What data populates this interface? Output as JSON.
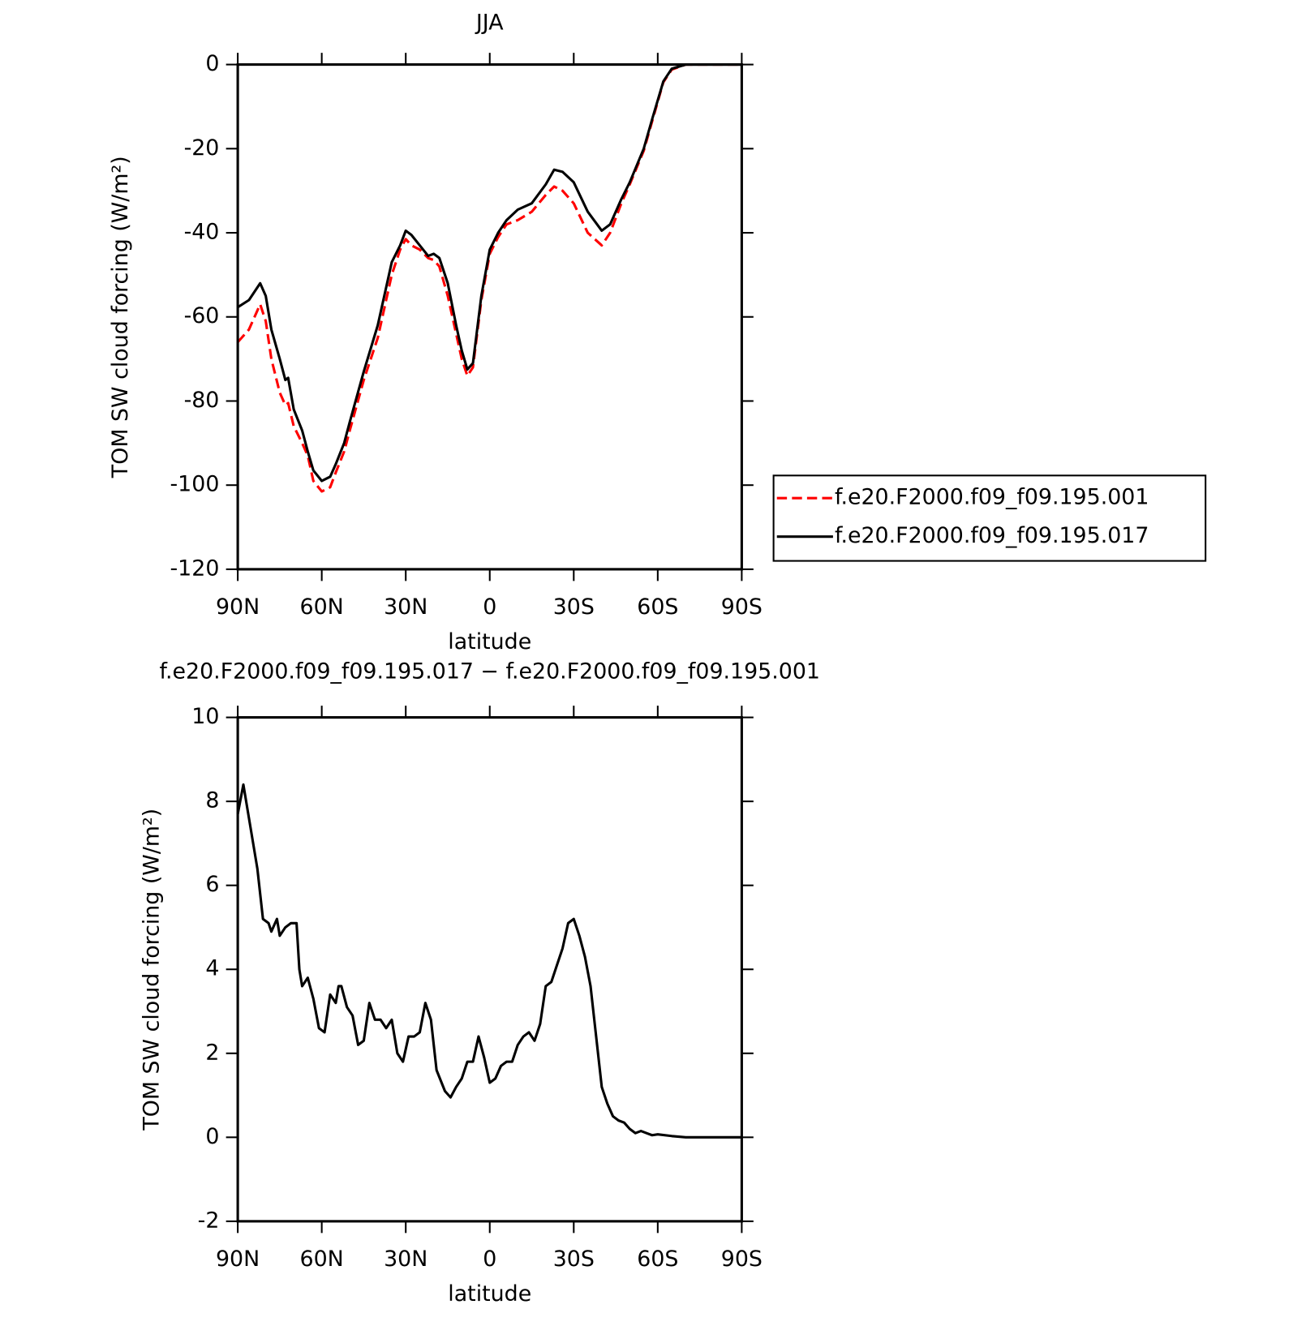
{
  "chart_data": [
    {
      "type": "line",
      "title": "JJA",
      "x_label": "latitude",
      "y_label": "TOM SW cloud forcing (W/m²)",
      "x": [
        90,
        86,
        82,
        80,
        78,
        75,
        73,
        72,
        70,
        67,
        65,
        63,
        60,
        57,
        55,
        52,
        50,
        45,
        40,
        35,
        32,
        30,
        28,
        25,
        22,
        20,
        18,
        15,
        12,
        10,
        8,
        6,
        3,
        0,
        -3,
        -6,
        -10,
        -15,
        -20,
        -23,
        -26,
        -30,
        -35,
        -40,
        -43,
        -47,
        -50,
        -55,
        -58,
        -62,
        -65,
        -70,
        -80,
        -90
      ],
      "series": [
        {
          "name": "f.e20.F2000.f09_f09.195.001",
          "color": "#ff0000",
          "dash": true,
          "values": [
            -66,
            -63,
            -57,
            -61,
            -70,
            -78,
            -81,
            -80.5,
            -86,
            -90,
            -93,
            -99,
            -101.5,
            -100.5,
            -97,
            -92,
            -87,
            -75,
            -65,
            -50,
            -44,
            -41.5,
            -43,
            -44,
            -46,
            -46.5,
            -48,
            -55,
            -64,
            -70,
            -74,
            -72,
            -56,
            -45,
            -41,
            -38,
            -37,
            -35,
            -31,
            -29,
            -30,
            -33,
            -40,
            -43,
            -40,
            -33,
            -28.5,
            -20.5,
            -13.5,
            -4.2,
            -1.2,
            0,
            0,
            0
          ]
        },
        {
          "name": "f.e20.F2000.f09_f09.195.017",
          "color": "#000000",
          "dash": false,
          "values": [
            -57.7,
            -56,
            -52,
            -55,
            -63,
            -70,
            -75,
            -74.5,
            -82,
            -87,
            -92,
            -96.5,
            -99,
            -98,
            -95,
            -90,
            -85,
            -73,
            -62,
            -47,
            -43,
            -39.5,
            -40.5,
            -43,
            -45.5,
            -45,
            -46,
            -52,
            -62,
            -68,
            -72.5,
            -71,
            -55,
            -44,
            -40,
            -37,
            -34.5,
            -33,
            -28.5,
            -25,
            -25.5,
            -28,
            -35,
            -39.5,
            -38,
            -32,
            -28,
            -20,
            -13,
            -4,
            -1,
            0,
            0,
            0
          ]
        }
      ],
      "xlim": [
        90,
        -90
      ],
      "ylim": [
        -120,
        0
      ],
      "xticks": [
        {
          "value": 90,
          "label": "90N"
        },
        {
          "value": 60,
          "label": "60N"
        },
        {
          "value": 30,
          "label": "30N"
        },
        0,
        {
          "value": -30,
          "label": "30S"
        },
        {
          "value": -60,
          "label": "60S"
        },
        {
          "value": -90,
          "label": "90S"
        }
      ],
      "yticks": [
        0,
        -20,
        -40,
        -60,
        -80,
        -100,
        -120
      ],
      "legend": "right"
    },
    {
      "type": "line",
      "title": "f.e20.F2000.f09_f09.195.017 − f.e20.F2000.f09_f09.195.001",
      "x_label": "latitude",
      "y_label": "TOM SW cloud forcing (W/m²)",
      "x": [
        90,
        88,
        86,
        83,
        81,
        79,
        78,
        76,
        75,
        73,
        71,
        69,
        68,
        67,
        65,
        63,
        61,
        59,
        57,
        55,
        54,
        53,
        51,
        49,
        47,
        45,
        43,
        41,
        39,
        37,
        35,
        33,
        31,
        29,
        27,
        25,
        23,
        21,
        19,
        16,
        14,
        12,
        10,
        8,
        6,
        4,
        2,
        0,
        -2,
        -4,
        -6,
        -8,
        -10,
        -12,
        -14,
        -16,
        -18,
        -20,
        -22,
        -24,
        -26,
        -28,
        -30,
        -32,
        -34,
        -36,
        -38,
        -40,
        -42,
        -44,
        -46,
        -48,
        -50,
        -52,
        -54,
        -56,
        -58,
        -60,
        -65,
        -70,
        -80,
        -90
      ],
      "series": [
        {
          "color": "#000000",
          "dash": false,
          "values": [
            7.7,
            8.4,
            7.6,
            6.4,
            5.2,
            5.1,
            4.9,
            5.2,
            4.8,
            5.0,
            5.1,
            5.1,
            4.0,
            3.6,
            3.8,
            3.3,
            2.6,
            2.5,
            3.4,
            3.2,
            3.6,
            3.6,
            3.1,
            2.9,
            2.2,
            2.3,
            3.2,
            2.8,
            2.8,
            2.6,
            2.8,
            2.0,
            1.8,
            2.4,
            2.4,
            2.5,
            3.2,
            2.8,
            1.6,
            1.1,
            0.95,
            1.2,
            1.4,
            1.8,
            1.8,
            2.4,
            1.9,
            1.3,
            1.4,
            1.7,
            1.8,
            1.8,
            2.2,
            2.4,
            2.5,
            2.3,
            2.7,
            3.6,
            3.7,
            4.1,
            4.5,
            5.1,
            5.2,
            4.8,
            4.3,
            3.6,
            2.4,
            1.2,
            0.8,
            0.5,
            0.4,
            0.35,
            0.2,
            0.1,
            0.15,
            0.1,
            0.05,
            0.07,
            0.03,
            0,
            0,
            0
          ]
        }
      ],
      "xlim": [
        90,
        -90
      ],
      "ylim": [
        -2,
        10
      ],
      "xticks": [
        {
          "value": 90,
          "label": "90N"
        },
        {
          "value": 60,
          "label": "60N"
        },
        {
          "value": 30,
          "label": "30N"
        },
        0,
        {
          "value": -30,
          "label": "30S"
        },
        {
          "value": -60,
          "label": "60S"
        },
        {
          "value": -90,
          "label": "90S"
        }
      ],
      "yticks": [
        -2,
        0,
        2,
        4,
        6,
        8,
        10
      ]
    }
  ]
}
